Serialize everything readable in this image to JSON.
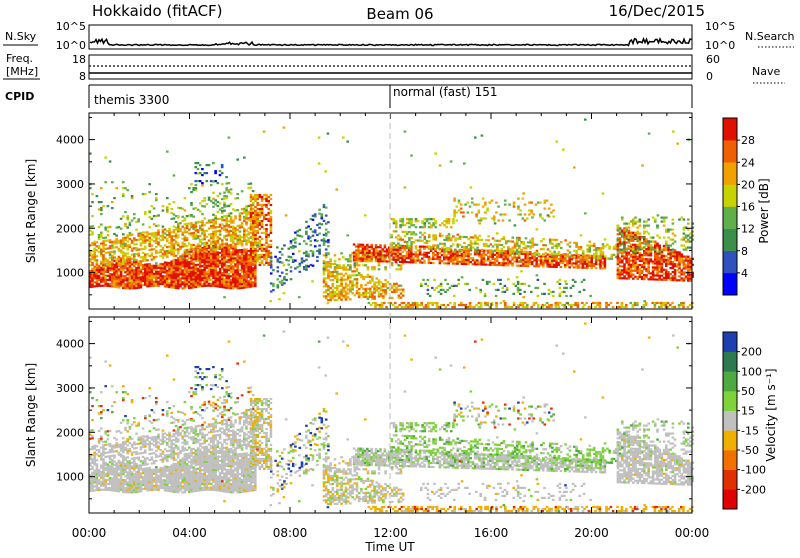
{
  "header": {
    "station": "Hokkaido (fitACF)",
    "beam": "Beam 06",
    "date": "16/Dec/2015"
  },
  "top_panels": {
    "nsky": {
      "label": "N.Sky",
      "tick_top": "10^5",
      "tick_bottom": "10^0",
      "right_label": "N.Search"
    },
    "freq": {
      "label_line1": "Freq.",
      "label_line2": "[MHz]",
      "tick_top": "18",
      "tick_bottom": "8",
      "right_tick_top": "60",
      "right_tick_bottom": "0",
      "right_label": "Nave"
    },
    "cpid": {
      "label": "CPID",
      "mode1_text": "themis 3300",
      "mode2_text": "normal (fast) 151"
    }
  },
  "chart_data": [
    {
      "type": "heatmap",
      "panel": "power",
      "ylabel": "Slant Range [km]",
      "xlim_hours": [
        0,
        24
      ],
      "ylim": [
        180,
        4600
      ],
      "yticks": [
        "1000",
        "2000",
        "3000",
        "4000"
      ],
      "colorbar": {
        "label": "Power [dB]",
        "ticks": [
          "4",
          "8",
          "12",
          "16",
          "20",
          "24",
          "28"
        ],
        "colors": [
          "#0000ff",
          "#3050c0",
          "#3a8f4a",
          "#5fb04a",
          "#c8d200",
          "#f0a000",
          "#f06000",
          "#e01000"
        ]
      }
    },
    {
      "type": "heatmap",
      "panel": "velocity",
      "ylabel": "Slant Range [km]",
      "xlim_hours": [
        0,
        24
      ],
      "ylim": [
        180,
        4600
      ],
      "yticks": [
        "1000",
        "2000",
        "3000",
        "4000"
      ],
      "colorbar": {
        "label": "Velocity [m s⁻¹]",
        "ticks": [
          "200",
          "100",
          "50",
          "15",
          "-15",
          "-50",
          "-100",
          "-200"
        ],
        "colors": [
          "#1e3fb0",
          "#2e7a50",
          "#4caa40",
          "#7ed23a",
          "#c0c0c0",
          "#f0b000",
          "#f07000",
          "#e03000",
          "#e00000"
        ]
      }
    }
  ],
  "x_axis": {
    "ticks": [
      "00:00",
      "04:00",
      "08:00",
      "12:00",
      "16:00",
      "20:00",
      "00:00"
    ],
    "label": "Time UT"
  },
  "colors": {
    "frame": "#000000",
    "dashed_line": "#bbbbbb"
  }
}
